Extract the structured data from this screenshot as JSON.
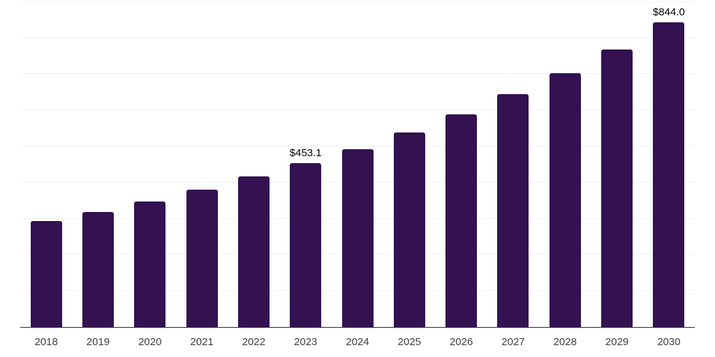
{
  "chart_data": {
    "type": "bar",
    "title": "",
    "xlabel": "",
    "ylabel": "",
    "categories": [
      "2018",
      "2019",
      "2020",
      "2021",
      "2022",
      "2023",
      "2024",
      "2025",
      "2026",
      "2027",
      "2028",
      "2029",
      "2030"
    ],
    "values": [
      294,
      319,
      348,
      380,
      417,
      453.1,
      493,
      538,
      588,
      644,
      703,
      769,
      844
    ],
    "point_labels": [
      "",
      "",
      "",
      "",
      "",
      "$453.1",
      "",
      "",
      "",
      "",
      "",
      "",
      "$844.0"
    ],
    "ylim": [
      0,
      900
    ],
    "gridline_step": 100,
    "grid": "horizontal",
    "legend": "none",
    "colors": {
      "bar": "#341150",
      "gridline": "#f0f0f0",
      "axis_line": "#262626",
      "tick_label": "#3d3d3d",
      "value_label": "#000000",
      "background": "#ffffff"
    }
  }
}
